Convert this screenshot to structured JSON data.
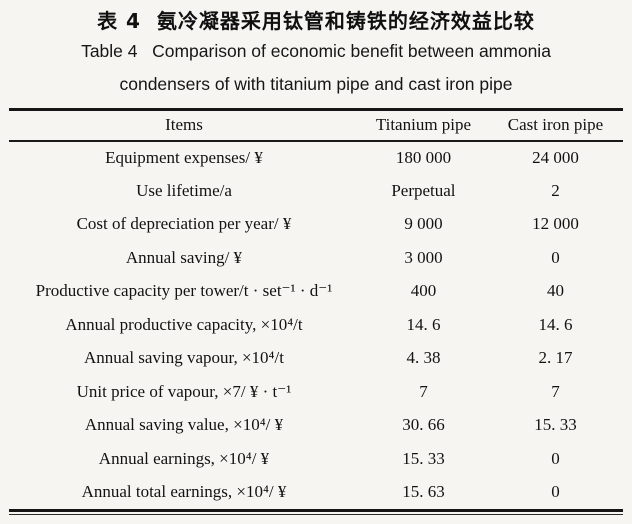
{
  "caption": {
    "zh": "表 4  氨冷凝器采用钛管和铸铁的经济效益比较",
    "en_line1": "Table 4   Comparison of economic benefit between ammonia",
    "en_line2": "condensers of with titanium pipe and cast iron pipe"
  },
  "table": {
    "columns": [
      "Items",
      "Titanium pipe",
      "Cast iron pipe"
    ],
    "rows": [
      {
        "item": "Equipment expenses/ ¥",
        "titanium": "180 000",
        "cast_iron": "24 000"
      },
      {
        "item": "Use lifetime/a",
        "titanium": "Perpetual",
        "cast_iron": "2"
      },
      {
        "item": "Cost of depreciation per year/ ¥",
        "titanium": "9 000",
        "cast_iron": "12 000"
      },
      {
        "item": "Annual saving/ ¥",
        "titanium": "3 000",
        "cast_iron": "0"
      },
      {
        "item": "Productive capacity per tower/t · set⁻¹ · d⁻¹",
        "titanium": "400",
        "cast_iron": "40"
      },
      {
        "item": "Annual productive capacity, ×10⁴/t",
        "titanium": "14. 6",
        "cast_iron": "14. 6"
      },
      {
        "item": "Annual saving vapour, ×10⁴/t",
        "titanium": "4. 38",
        "cast_iron": "2. 17"
      },
      {
        "item": "Unit price of vapour, ×7/ ¥ · t⁻¹",
        "titanium": "7",
        "cast_iron": "7"
      },
      {
        "item": "Annual saving value, ×10⁴/ ¥",
        "titanium": "30. 66",
        "cast_iron": "15. 33"
      },
      {
        "item": "Annual earnings, ×10⁴/ ¥",
        "titanium": "15. 33",
        "cast_iron": "0"
      },
      {
        "item": "Annual total earnings, ×10⁴/ ¥",
        "titanium": "15. 63",
        "cast_iron": "0"
      }
    ]
  },
  "colors": {
    "paper_background": "#f6f5f2",
    "text": "#151515",
    "rule": "#161616"
  }
}
